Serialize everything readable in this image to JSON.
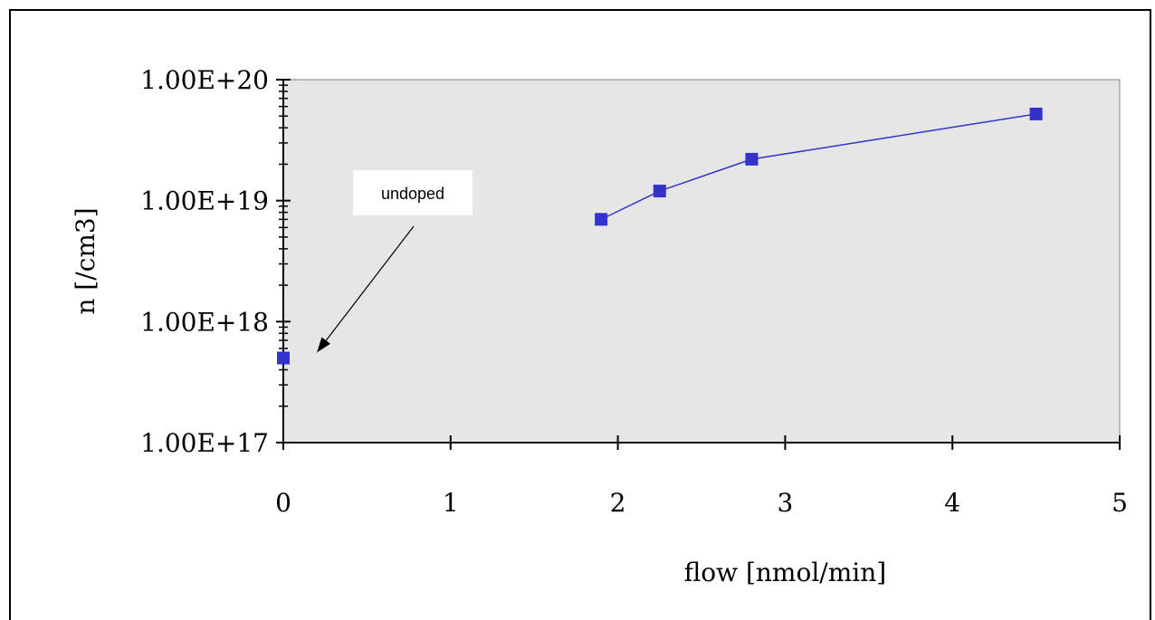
{
  "chart_data": {
    "type": "scatter",
    "xlabel": "flow [nmol/min]",
    "ylabel": "n [/cm3]",
    "x_ticks": [
      "0",
      "1",
      "2",
      "3",
      "4",
      "5"
    ],
    "y_ticks": [
      "1.00E+17",
      "1.00E+18",
      "1.00E+19",
      "1.00E+20"
    ],
    "xlim": [
      0,
      5
    ],
    "ylim": [
      1e+17,
      1e+20
    ],
    "y_scale": "log",
    "grid": false,
    "plot_background": "#e6e6e6",
    "colors": {
      "series": "#3333cc",
      "axis": "#000000"
    },
    "series": [
      {
        "points": [
          {
            "x": 0,
            "y": 5e+17
          },
          {
            "x": 1.9,
            "y": 7e+18
          },
          {
            "x": 2.25,
            "y": 1.2e+19
          },
          {
            "x": 2.8,
            "y": 2.2e+19
          },
          {
            "x": 4.5,
            "y": 5.2e+19
          }
        ],
        "connected": [
          false,
          true,
          true,
          true,
          true
        ]
      }
    ],
    "annotations": [
      {
        "text": "undoped",
        "arrow_to": {
          "x": 0.1,
          "y": 5e+17
        }
      }
    ]
  }
}
